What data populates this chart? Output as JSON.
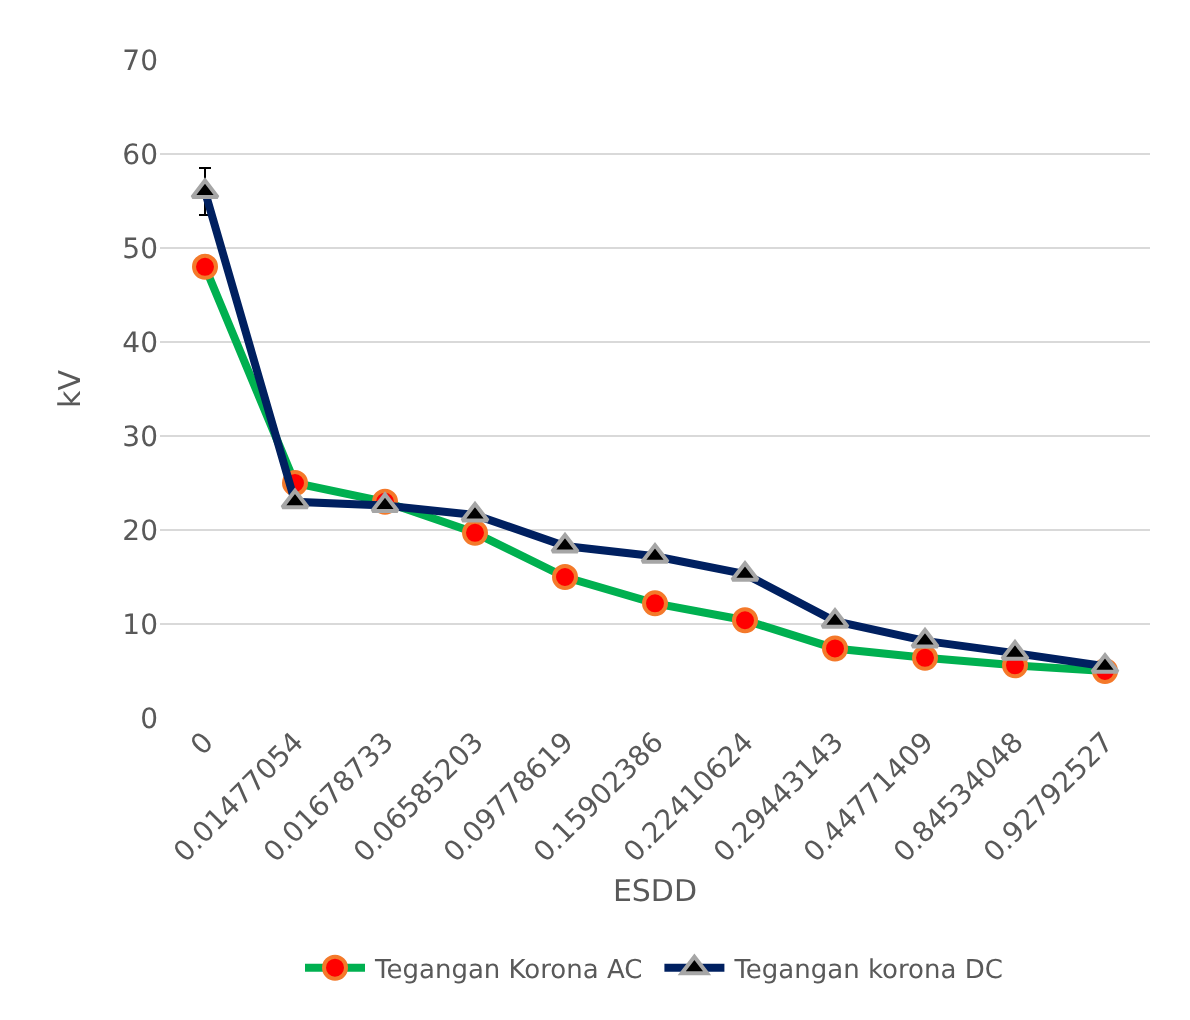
{
  "chart_data": {
    "type": "line",
    "xlabel": "ESDD",
    "ylabel": "kV",
    "categories": [
      "0",
      "0.01477054",
      "0.01678733",
      "0.06585203",
      "0.09778619",
      "0.15902386",
      "0.22410624",
      "0.29443143",
      "0.44771409",
      "0.84534048",
      "0.92792527"
    ],
    "series": [
      {
        "name": "Tegangan Korona AC",
        "color": "#00b050",
        "marker": "circle",
        "values": [
          48,
          25,
          23,
          19.7,
          15,
          12.2,
          10.4,
          7.4,
          6.4,
          5.6,
          5
        ]
      },
      {
        "name": "Tegangan korona DC",
        "color": "#002060",
        "marker": "triangle",
        "values": [
          56,
          23,
          22.6,
          21.6,
          18.3,
          17.2,
          15.3,
          10.3,
          8.2,
          6.9,
          5.5
        ],
        "errors": [
          2.5,
          null,
          null,
          null,
          null,
          null,
          null,
          null,
          null,
          null,
          null
        ]
      }
    ],
    "ylim": [
      0,
      70
    ],
    "yticks": [
      0,
      10,
      20,
      30,
      40,
      50,
      60,
      70
    ],
    "grid": "y",
    "legend": "bottom"
  }
}
